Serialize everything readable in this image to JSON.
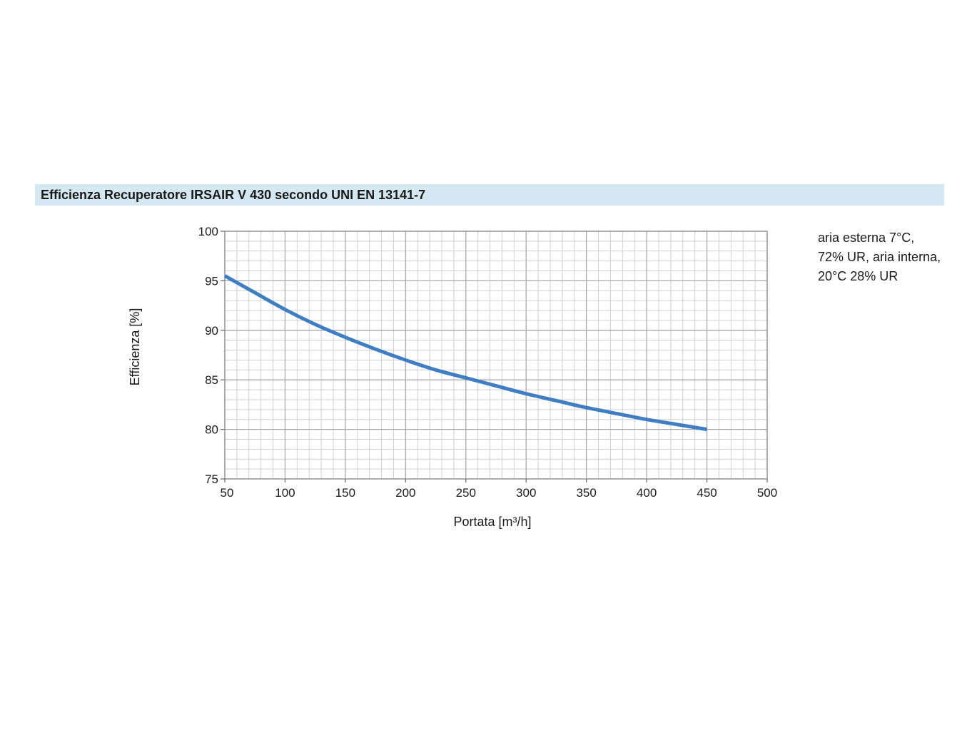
{
  "title": "Efficienza Recuperatore IRSAIR V 430 secondo UNI EN 13141-7",
  "note": {
    "line1": "aria esterna 7°C,",
    "line2": "72% UR, aria interna,",
    "line3": "20°C 28% UR"
  },
  "colors": {
    "title_background": "#d3e8f0",
    "series": "#3f7ec3",
    "grid": "#a9a9a9"
  },
  "chart_data": {
    "type": "line",
    "xlabel": "Portata [m³/h]",
    "ylabel": "Efficienza [%]",
    "xlim": [
      50,
      500
    ],
    "ylim": [
      75,
      100
    ],
    "x_ticks": [
      50,
      100,
      150,
      200,
      250,
      300,
      350,
      400,
      450,
      500
    ],
    "y_ticks": [
      75,
      80,
      85,
      90,
      95,
      100
    ],
    "grid": true,
    "series": [
      {
        "x": [
          50,
          75,
          100,
          125,
          150,
          175,
          200,
          225,
          250,
          275,
          300,
          325,
          350,
          375,
          400,
          425,
          450
        ],
        "y": [
          95.5,
          93.8,
          92.1,
          90.6,
          89.3,
          88.1,
          87.0,
          86.0,
          85.2,
          84.4,
          83.6,
          82.9,
          82.2,
          81.6,
          81.0,
          80.5,
          80.0
        ]
      }
    ]
  }
}
